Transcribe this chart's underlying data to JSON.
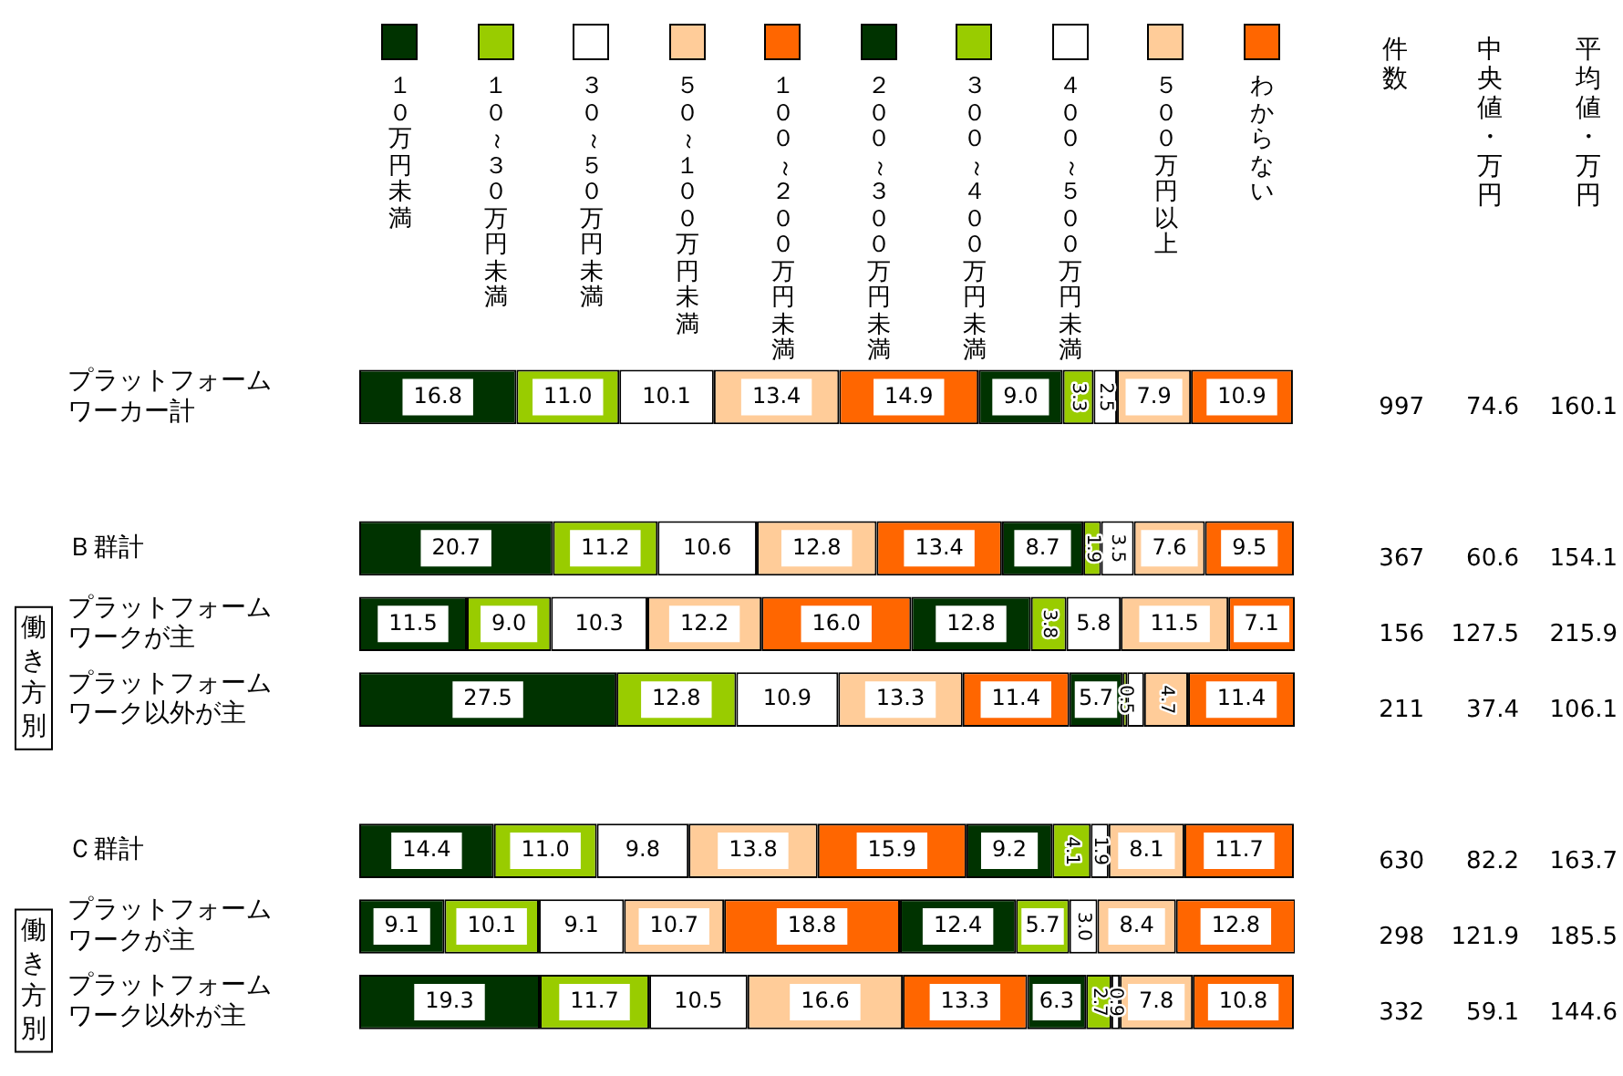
{
  "chart_data": {
    "type": "bar",
    "orientation": "horizontal",
    "stacked": true,
    "legend": "top",
    "tick_labels": "y",
    "xlim": [
      0,
      100
    ],
    "categories": [
      "プラットフォームワーカー計",
      null,
      "Ｂ群計",
      "プラットフォームワークが主",
      "プラットフォームワーク以外が主",
      null,
      "Ｃ群計",
      "プラットフォームワークが主",
      "プラットフォームワーク以外が主"
    ],
    "series": [
      {
        "name": "１０万円未満",
        "color": "#003300",
        "values": [
          16.8,
          null,
          20.7,
          11.5,
          27.5,
          null,
          14.4,
          9.1,
          19.3
        ],
        "value_labels": [
          "16.8",
          null,
          "20.7",
          "11.5",
          "27.5",
          null,
          "14.4",
          "9.1",
          "19.3"
        ]
      },
      {
        "name": "１０～３０万円未満",
        "color": "#99cc00",
        "values": [
          11.0,
          null,
          11.2,
          9.0,
          12.8,
          null,
          11.0,
          10.1,
          11.7
        ],
        "value_labels": [
          "11.0",
          null,
          "11.2",
          "9.0",
          "12.8",
          null,
          "11.0",
          "10.1",
          "11.7"
        ]
      },
      {
        "name": "３０～５０万円未満",
        "color": "#ffffff",
        "values": [
          10.1,
          null,
          10.6,
          10.3,
          10.9,
          null,
          9.8,
          9.1,
          10.5
        ],
        "value_labels": [
          "10.1",
          null,
          "10.6",
          "10.3",
          "10.9",
          null,
          "9.8",
          "9.1",
          "10.5"
        ]
      },
      {
        "name": "５０～１００万円未満",
        "color": "#ffcc99",
        "values": [
          13.4,
          null,
          12.8,
          12.2,
          13.3,
          null,
          13.8,
          10.7,
          16.6
        ],
        "value_labels": [
          "13.4",
          null,
          "12.8",
          "12.2",
          "13.3",
          null,
          "13.8",
          "10.7",
          "16.6"
        ]
      },
      {
        "name": "１００～２００万円未満",
        "color": "#ff6600",
        "values": [
          14.9,
          null,
          13.4,
          16.0,
          11.4,
          null,
          15.9,
          18.8,
          13.3
        ],
        "value_labels": [
          "14.9",
          null,
          "13.4",
          "16.0",
          "11.4",
          null,
          "15.9",
          "18.8",
          "13.3"
        ]
      },
      {
        "name": "２００～３００万円未満",
        "color": "#003300",
        "values": [
          9.0,
          null,
          8.7,
          12.8,
          5.7,
          null,
          9.2,
          12.4,
          6.3
        ],
        "value_labels": [
          "9.0",
          null,
          "8.7",
          "12.8",
          "5.7",
          null,
          "9.2",
          "12.4",
          "6.3"
        ]
      },
      {
        "name": "３００～４００万円未満",
        "color": "#99cc00",
        "values": [
          3.3,
          null,
          1.9,
          3.8,
          0.5,
          null,
          4.1,
          5.7,
          2.7
        ],
        "value_labels": [
          "3.3",
          null,
          "1.9",
          "3.8",
          "0.5",
          null,
          "4.1",
          "5.7",
          "2.7"
        ]
      },
      {
        "name": "４００～５００万円未満",
        "color": "#ffffff",
        "values": [
          2.5,
          null,
          3.5,
          5.8,
          1.8,
          null,
          1.9,
          3.0,
          0.9
        ],
        "value_labels": [
          "2.5",
          null,
          "3.5",
          "5.8",
          null,
          null,
          "1.9",
          "3.0",
          "0.9"
        ]
      },
      {
        "name": "５００万円以上",
        "color": "#ffcc99",
        "values": [
          7.9,
          null,
          7.6,
          11.5,
          4.7,
          null,
          8.1,
          8.4,
          7.8
        ],
        "value_labels": [
          "7.9",
          null,
          "7.6",
          "11.5",
          "4.7",
          null,
          "8.1",
          "8.4",
          "7.8"
        ]
      },
      {
        "name": "わからない",
        "color": "#ff6600",
        "values": [
          10.9,
          null,
          9.5,
          7.1,
          11.4,
          null,
          11.7,
          12.8,
          10.8
        ],
        "value_labels": [
          "10.9",
          null,
          "9.5",
          "7.1",
          "11.4",
          null,
          "11.7",
          "12.8",
          "10.8"
        ]
      }
    ],
    "annotations": [
      "件数",
      "中央値・万円",
      "平均値・万円",
      "997",
      "74.6",
      "160.1",
      "367",
      "60.6",
      "154.1",
      "156",
      "127.5",
      "215.9",
      "211",
      "37.4",
      "106.1",
      "630",
      "82.2",
      "163.7",
      "298",
      "121.9",
      "185.5",
      "332",
      "59.1",
      "144.6",
      "働き方別",
      "働き方別"
    ]
  }
}
